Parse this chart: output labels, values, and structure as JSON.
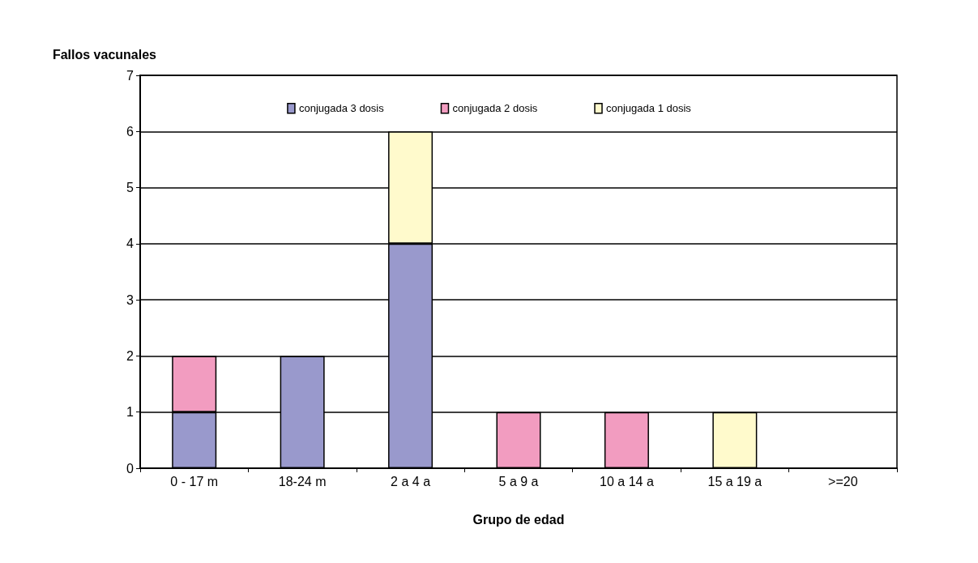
{
  "chart_data": {
    "type": "bar",
    "stacked": true,
    "xlabel": "Grupo de edad",
    "ylabel": "Fallos vacunales",
    "categories": [
      "0 - 17 m",
      "18-24 m",
      "2 a 4 a",
      "5 a 9 a",
      "10 a 14 a",
      "15 a 19 a",
      ">=20"
    ],
    "series": [
      {
        "name": "conjugada 3 dosis",
        "color": "#9999cc",
        "values": [
          1,
          2,
          4,
          0,
          0,
          0,
          0
        ]
      },
      {
        "name": "conjugada 2 dosis",
        "color": "#f29cc0",
        "values": [
          1,
          0,
          0,
          1,
          1,
          0,
          0
        ]
      },
      {
        "name": "conjugada 1 dosis",
        "color": "#fffacc",
        "values": [
          0,
          0,
          2,
          0,
          0,
          1,
          0
        ]
      }
    ],
    "ylim": [
      0,
      7
    ],
    "yticks": [
      0,
      1,
      2,
      3,
      4,
      5,
      6,
      7
    ],
    "grid": "y",
    "legend": "top"
  }
}
